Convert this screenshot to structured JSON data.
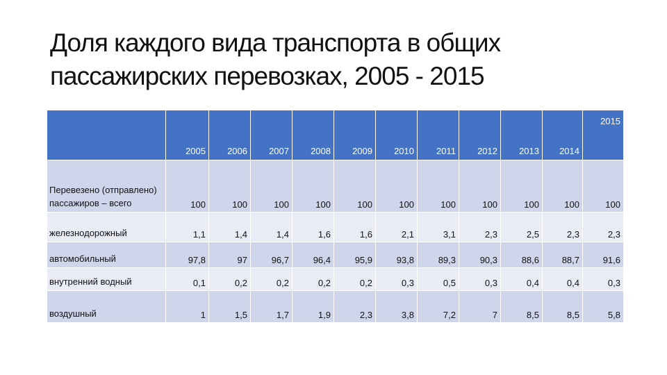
{
  "title": "Доля каждого вида транспорта в общих пассажирских перевозках, 2005 - 2015",
  "table": {
    "columns": [
      "2005",
      "2006",
      "2007",
      "2008",
      "2009",
      "2010",
      "2011",
      "2012",
      "2013",
      "2014",
      "2015"
    ],
    "rows": [
      {
        "label": "Перевезено (отправлено) пассажиров – всего",
        "values": [
          "100",
          "100",
          "100",
          "100",
          "100",
          "100",
          "100",
          "100",
          "100",
          "100",
          "100"
        ]
      },
      {
        "label": "железнодорожный",
        "values": [
          "1,1",
          "1,4",
          "1,4",
          "1,6",
          "1,6",
          "2,1",
          "3,1",
          "2,3",
          "2,5",
          "2,3",
          "2,3"
        ]
      },
      {
        "label": "автомобильный",
        "values": [
          "97,8",
          "97",
          "96,7",
          "96,4",
          "95,9",
          "93,8",
          "89,3",
          "90,3",
          "88,6",
          "88,7",
          "91,6"
        ]
      },
      {
        "label": "внутренний водный",
        "values": [
          "0,1",
          "0,2",
          "0,2",
          "0,2",
          "0,2",
          "0,3",
          "0,5",
          "0,3",
          "0,4",
          "0,4",
          "0,3"
        ]
      },
      {
        "label": "воздушный",
        "values": [
          "1",
          "1,5",
          "1,7",
          "1,9",
          "2,3",
          "3,8",
          "7,2",
          "7",
          "8,5",
          "8,5",
          "5,8"
        ]
      }
    ]
  }
}
